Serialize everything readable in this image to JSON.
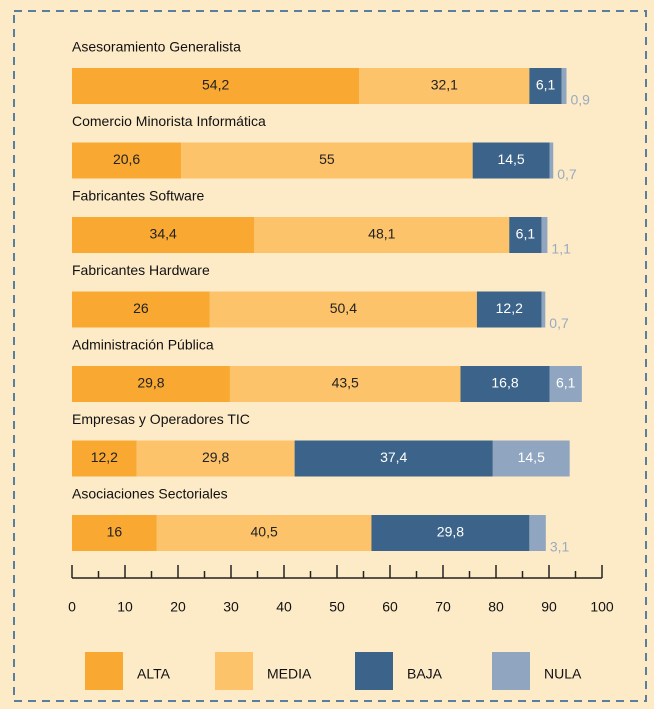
{
  "chart_data": {
    "type": "stacked-bar-horizontal",
    "categories": [
      "Asesoramiento Generalista",
      "Comercio Minorista Informática",
      "Fabricantes Software",
      "Fabricantes Hardware",
      "Administración Pública",
      "Empresas y Operadores TIC",
      "Asociaciones Sectoriales"
    ],
    "series": [
      {
        "name": "ALTA",
        "color": "#f9a832",
        "values": [
          54.2,
          20.6,
          34.4,
          26,
          29.8,
          12.2,
          16
        ],
        "value_labels": [
          "54,2",
          "20,6",
          "34,4",
          "26",
          "29,8",
          "12,2",
          "16"
        ]
      },
      {
        "name": "MEDIA",
        "color": "#fdc36a",
        "values": [
          32.1,
          55,
          48.1,
          50.4,
          43.5,
          29.8,
          40.5
        ],
        "value_labels": [
          "32,1",
          "55",
          "48,1",
          "50,4",
          "43,5",
          "29,8",
          "40,5"
        ]
      },
      {
        "name": "BAJA",
        "color": "#3c6389",
        "values": [
          6.1,
          14.5,
          6.1,
          12.2,
          16.8,
          37.4,
          29.8
        ],
        "value_labels": [
          "6,1",
          "14,5",
          "6,1",
          "12,2",
          "16,8",
          "37,4",
          "29,8"
        ]
      },
      {
        "name": "NULA",
        "color": "#8fa5c0",
        "values": [
          0.9,
          0.7,
          1.1,
          0.7,
          6.1,
          14.5,
          3.1
        ],
        "value_labels": [
          "0,9",
          "0,7",
          "1,1",
          "0,7",
          "6,1",
          "14,5",
          "3,1"
        ]
      }
    ],
    "xlim": [
      0,
      100
    ],
    "xticks": [
      0,
      10,
      20,
      30,
      40,
      50,
      60,
      70,
      80,
      90,
      100
    ]
  }
}
